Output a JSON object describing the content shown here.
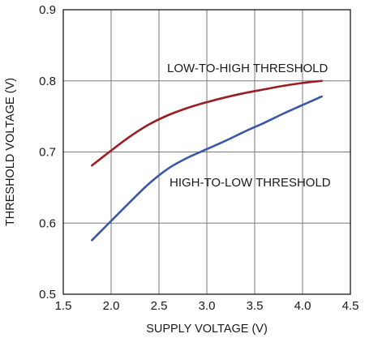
{
  "chart_data": {
    "type": "line",
    "title": "",
    "xlabel": "SUPPLY VOLTAGE (V)",
    "ylabel": "THRESHOLD VOLTAGE (V)",
    "xlim": [
      1.5,
      4.5
    ],
    "ylim": [
      0.5,
      0.9
    ],
    "x_ticks": [
      "1.5",
      "2.0",
      "2.5",
      "3.0",
      "3.5",
      "4.0",
      "4.5"
    ],
    "y_ticks": [
      "0.5",
      "0.6",
      "0.7",
      "0.8",
      "0.9"
    ],
    "x_tick_values": [
      1.5,
      2.0,
      2.5,
      3.0,
      3.5,
      4.0,
      4.5
    ],
    "y_tick_values": [
      0.5,
      0.6,
      0.7,
      0.8,
      0.9
    ],
    "grid": true,
    "series": [
      {
        "name": "LOW-TO-HIGH THRESHOLD",
        "color": "#9b1c22",
        "x": [
          1.8,
          2.0,
          2.2,
          2.4,
          2.6,
          2.8,
          3.0,
          3.2,
          3.4,
          3.6,
          3.8,
          4.0,
          4.2
        ],
        "y": [
          0.681,
          0.702,
          0.722,
          0.739,
          0.752,
          0.762,
          0.77,
          0.777,
          0.783,
          0.788,
          0.793,
          0.797,
          0.8
        ]
      },
      {
        "name": "HIGH-TO-LOW THRESHOLD",
        "color": "#3b57a8",
        "x": [
          1.8,
          2.0,
          2.2,
          2.4,
          2.6,
          2.8,
          3.0,
          3.2,
          3.4,
          3.6,
          3.8,
          4.0,
          4.2
        ],
        "y": [
          0.576,
          0.603,
          0.63,
          0.656,
          0.677,
          0.692,
          0.704,
          0.716,
          0.729,
          0.741,
          0.754,
          0.766,
          0.778
        ]
      }
    ]
  }
}
